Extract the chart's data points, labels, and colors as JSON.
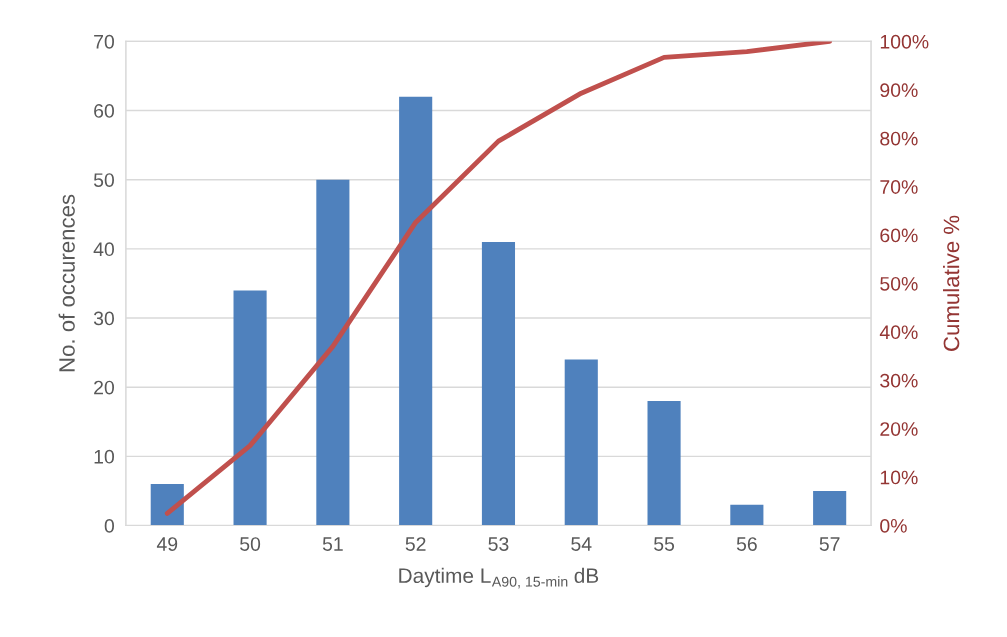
{
  "chart_data": {
    "type": "bar",
    "categories": [
      "49",
      "50",
      "51",
      "52",
      "53",
      "54",
      "55",
      "56",
      "57"
    ],
    "series": [
      {
        "color": "#4f81bd",
        "values": [
          6,
          34,
          50,
          62,
          41,
          24,
          18,
          3,
          5
        ]
      },
      {
        "type": "line",
        "axis": "y2",
        "color": "#c0504d",
        "values": [
          2.5,
          16.5,
          37.0,
          62.6,
          79.4,
          89.3,
          96.7,
          97.9,
          100
        ]
      }
    ],
    "xlabel": "Daytime L$_{A90, 15-min}$ dB",
    "ylabel": "No. of occurences",
    "y2label": "Cumulative %",
    "ylim": [
      0,
      70
    ],
    "yticks": [
      0,
      10,
      20,
      30,
      40,
      50,
      60,
      70
    ],
    "y2lim": [
      0,
      100
    ],
    "y2ticks": [
      {
        "value": 0,
        "label": "0%"
      },
      {
        "value": 10,
        "label": "10%"
      },
      {
        "value": 20,
        "label": "20%"
      },
      {
        "value": 30,
        "label": "30%"
      },
      {
        "value": 40,
        "label": "40%"
      },
      {
        "value": 50,
        "label": "50%"
      },
      {
        "value": 60,
        "label": "60%"
      },
      {
        "value": 70,
        "label": "70%"
      },
      {
        "value": 80,
        "label": "80%"
      },
      {
        "value": 90,
        "label": "90%"
      },
      {
        "value": 100,
        "label": "100%"
      }
    ],
    "grid": "y",
    "marker": "none",
    "line_style": "solid"
  }
}
